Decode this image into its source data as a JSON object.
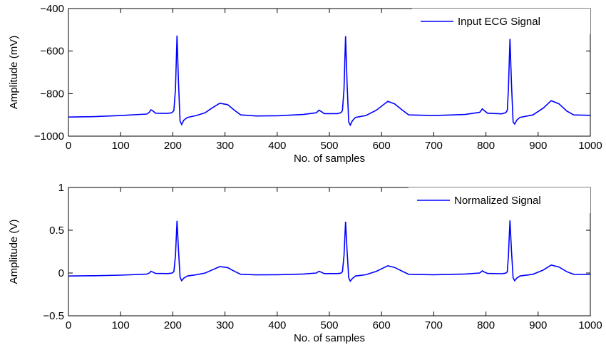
{
  "chart_data": [
    {
      "type": "line",
      "xlabel": "No. of samples",
      "ylabel": "Amplitude (mV)",
      "xlim": [
        0,
        1000
      ],
      "ylim": [
        -1000,
        -400
      ],
      "xticks": [
        0,
        100,
        200,
        300,
        400,
        500,
        600,
        700,
        800,
        900,
        1000
      ],
      "yticks": [
        -1000,
        -800,
        -600,
        -400
      ],
      "ytick_labels": [
        "−1000",
        "−800",
        "−600",
        "−400"
      ],
      "grid": false,
      "legend_position": "top-right",
      "series": [
        {
          "name": "Input ECG Signal",
          "color": "#0000ff",
          "points": [
            [
              0,
              -910
            ],
            [
              50,
              -908
            ],
            [
              100,
              -903
            ],
            [
              150,
              -896
            ],
            [
              155,
              -888
            ],
            [
              158,
              -876
            ],
            [
              162,
              -882
            ],
            [
              167,
              -892
            ],
            [
              190,
              -893
            ],
            [
              198,
              -890
            ],
            [
              202,
              -880
            ],
            [
              205,
              -780
            ],
            [
              208,
              -527
            ],
            [
              211,
              -760
            ],
            [
              214,
              -930
            ],
            [
              217,
              -945
            ],
            [
              221,
              -925
            ],
            [
              228,
              -912
            ],
            [
              245,
              -903
            ],
            [
              262,
              -890
            ],
            [
              275,
              -868
            ],
            [
              290,
              -845
            ],
            [
              305,
              -852
            ],
            [
              318,
              -878
            ],
            [
              330,
              -900
            ],
            [
              360,
              -905
            ],
            [
              400,
              -904
            ],
            [
              450,
              -898
            ],
            [
              475,
              -890
            ],
            [
              480,
              -878
            ],
            [
              485,
              -885
            ],
            [
              490,
              -894
            ],
            [
              515,
              -894
            ],
            [
              522,
              -890
            ],
            [
              525,
              -880
            ],
            [
              528,
              -780
            ],
            [
              531,
              -530
            ],
            [
              534,
              -760
            ],
            [
              537,
              -933
            ],
            [
              540,
              -948
            ],
            [
              544,
              -928
            ],
            [
              550,
              -912
            ],
            [
              570,
              -903
            ],
            [
              590,
              -878
            ],
            [
              612,
              -836
            ],
            [
              625,
              -848
            ],
            [
              640,
              -878
            ],
            [
              652,
              -900
            ],
            [
              700,
              -903
            ],
            [
              760,
              -898
            ],
            [
              788,
              -888
            ],
            [
              793,
              -872
            ],
            [
              797,
              -880
            ],
            [
              803,
              -892
            ],
            [
              830,
              -895
            ],
            [
              838,
              -890
            ],
            [
              841,
              -878
            ],
            [
              843,
              -780
            ],
            [
              846,
              -543
            ],
            [
              849,
              -760
            ],
            [
              852,
              -933
            ],
            [
              855,
              -943
            ],
            [
              859,
              -925
            ],
            [
              865,
              -912
            ],
            [
              890,
              -900
            ],
            [
              910,
              -868
            ],
            [
              925,
              -833
            ],
            [
              940,
              -848
            ],
            [
              955,
              -882
            ],
            [
              968,
              -900
            ],
            [
              1000,
              -902
            ]
          ]
        }
      ]
    },
    {
      "type": "line",
      "xlabel": "No. of samples",
      "ylabel": "Amplitude (V)",
      "xlim": [
        0,
        1000
      ],
      "ylim": [
        -0.5,
        1
      ],
      "xticks": [
        0,
        100,
        200,
        300,
        400,
        500,
        600,
        700,
        800,
        900,
        1000
      ],
      "yticks": [
        -0.5,
        0,
        0.5,
        1
      ],
      "ytick_labels": [
        "−0.5",
        "0",
        "0.5",
        "1"
      ],
      "grid": false,
      "legend_position": "top-right",
      "series": [
        {
          "name": "Normalized Signal",
          "color": "#0000ff",
          "points": [
            [
              0,
              -0.035
            ],
            [
              50,
              -0.032
            ],
            [
              100,
              -0.025
            ],
            [
              150,
              -0.013
            ],
            [
              155,
              0.0
            ],
            [
              158,
              0.02
            ],
            [
              162,
              0.01
            ],
            [
              167,
              -0.005
            ],
            [
              190,
              -0.007
            ],
            [
              198,
              -0.002
            ],
            [
              202,
              0.015
            ],
            [
              205,
              0.2
            ],
            [
              208,
              0.61
            ],
            [
              211,
              0.25
            ],
            [
              214,
              -0.05
            ],
            [
              217,
              -0.09
            ],
            [
              221,
              -0.06
            ],
            [
              228,
              -0.035
            ],
            [
              245,
              -0.02
            ],
            [
              262,
              0.0
            ],
            [
              275,
              0.035
            ],
            [
              290,
              0.075
            ],
            [
              305,
              0.063
            ],
            [
              318,
              0.02
            ],
            [
              330,
              -0.015
            ],
            [
              360,
              -0.022
            ],
            [
              400,
              -0.02
            ],
            [
              450,
              -0.012
            ],
            [
              475,
              0.0
            ],
            [
              480,
              0.02
            ],
            [
              485,
              0.008
            ],
            [
              490,
              -0.007
            ],
            [
              515,
              -0.007
            ],
            [
              522,
              -0.002
            ],
            [
              525,
              0.015
            ],
            [
              528,
              0.2
            ],
            [
              531,
              0.6
            ],
            [
              534,
              0.25
            ],
            [
              537,
              -0.055
            ],
            [
              540,
              -0.095
            ],
            [
              544,
              -0.065
            ],
            [
              550,
              -0.035
            ],
            [
              570,
              -0.02
            ],
            [
              590,
              0.02
            ],
            [
              612,
              0.085
            ],
            [
              625,
              0.065
            ],
            [
              640,
              0.02
            ],
            [
              652,
              -0.015
            ],
            [
              700,
              -0.02
            ],
            [
              760,
              -0.012
            ],
            [
              788,
              0.0
            ],
            [
              793,
              0.025
            ],
            [
              797,
              0.012
            ],
            [
              803,
              -0.005
            ],
            [
              830,
              -0.008
            ],
            [
              838,
              -0.002
            ],
            [
              841,
              0.015
            ],
            [
              843,
              0.2
            ],
            [
              846,
              0.615
            ],
            [
              849,
              0.25
            ],
            [
              852,
              -0.055
            ],
            [
              855,
              -0.09
            ],
            [
              859,
              -0.06
            ],
            [
              865,
              -0.035
            ],
            [
              890,
              -0.015
            ],
            [
              910,
              0.035
            ],
            [
              925,
              0.093
            ],
            [
              940,
              0.07
            ],
            [
              955,
              0.015
            ],
            [
              968,
              -0.015
            ],
            [
              1000,
              -0.017
            ]
          ]
        }
      ]
    }
  ]
}
